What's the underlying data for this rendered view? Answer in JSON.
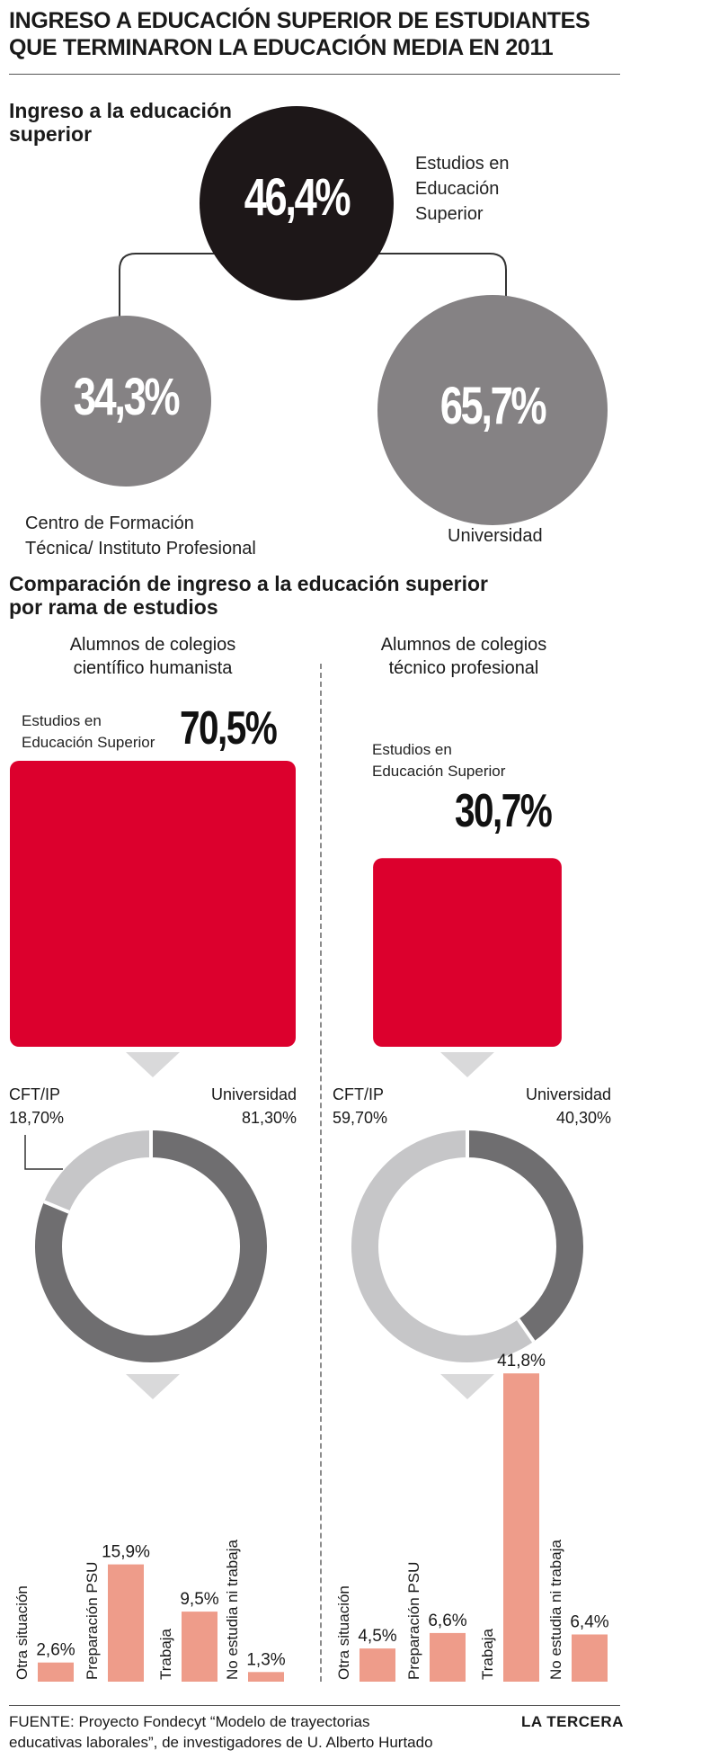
{
  "header": {
    "title_line1": "INGRESO A EDUCACIÓN SUPERIOR DE ESTUDIANTES",
    "title_line2": "QUE TERMINARON LA EDUCACIÓN MEDIA EN 2011"
  },
  "section1": {
    "heading_line1": "Ingreso a la educación",
    "heading_line2": "superior",
    "top_label_line1": "Estudios en",
    "top_label_line2": "Educación",
    "top_label_line3": "Superior",
    "left_label_line1": "Centro de Formación",
    "left_label_line2": "Técnica/ Instituto Profesional",
    "right_label": "Universidad"
  },
  "section2": {
    "heading_line1": "Comparación de ingreso a la educación superior",
    "heading_line2": "por rama de estudios",
    "left_col_line1": "Alumnos de colegios",
    "left_col_line2": "científico humanista",
    "right_col_line1": "Alumnos de colegios",
    "right_col_line2": "técnico profesional",
    "es_label_line1": "Estudios en",
    "es_label_line2": "Educación Superior",
    "cft_label": "CFT/IP",
    "uni_label": "Universidad"
  },
  "footer": {
    "source_line1": "FUENTE: Proyecto Fondecyt “Modelo de trayectorias",
    "source_line2": "educativas laborales”, de investigadores de U. Alberto Hurtado",
    "brand": "LA TERCERA"
  },
  "colors": {
    "black_circle": "#1d1718",
    "gray_circle": "#858284",
    "red": "#dc002d",
    "donut_dark": "#6f6e70",
    "donut_light": "#c6c6c8",
    "salmon": "#ee9c8a",
    "arrow": "#d9d9da"
  },
  "chart_data": [
    {
      "type": "pie",
      "title": "Ingreso a la educación superior",
      "values": [
        {
          "label": "Estudios en Educación Superior",
          "value": 46.4,
          "display": "46,4%"
        },
        {
          "label": "Centro de Formación Técnica/ Instituto Profesional",
          "value": 34.3,
          "display": "34,3%"
        },
        {
          "label": "Universidad",
          "value": 65.7,
          "display": "65,7%"
        }
      ]
    },
    {
      "type": "bar",
      "title": "Alumnos de colegios científico humanista",
      "categories": [
        "Estudios en Educación Superior"
      ],
      "values": [
        70.5
      ],
      "display": [
        "70,5%"
      ]
    },
    {
      "type": "bar",
      "title": "Alumnos de colegios técnico profesional",
      "categories": [
        "Estudios en Educación Superior"
      ],
      "values": [
        30.7
      ],
      "display": [
        "30,7%"
      ]
    },
    {
      "type": "pie",
      "title": "Alumnos de colegios científico humanista",
      "categories": [
        "CFT/IP",
        "Universidad"
      ],
      "values": [
        18.7,
        81.3
      ],
      "display": [
        "18,70%",
        "81,30%"
      ]
    },
    {
      "type": "pie",
      "title": "Alumnos de colegios técnico profesional",
      "categories": [
        "CFT/IP",
        "Universidad"
      ],
      "values": [
        59.7,
        40.3
      ],
      "display": [
        "59,70%",
        "40,30%"
      ]
    },
    {
      "type": "bar",
      "title": "Alumnos de colegios científico humanista",
      "categories": [
        "Otra situación",
        "Preparación PSU",
        "Trabaja",
        "No estudia ni trabaja"
      ],
      "values": [
        2.6,
        15.9,
        9.5,
        1.3
      ],
      "display": [
        "2,6%",
        "15,9%",
        "9,5%",
        "1,3%"
      ]
    },
    {
      "type": "bar",
      "title": "Alumnos de colegios técnico profesional",
      "categories": [
        "Otra situación",
        "Preparación PSU",
        "Trabaja",
        "No estudia ni trabaja"
      ],
      "values": [
        4.5,
        6.6,
        41.8,
        6.4
      ],
      "display": [
        "4,5%",
        "6,6%",
        "41,8%",
        "6,4%"
      ]
    }
  ]
}
